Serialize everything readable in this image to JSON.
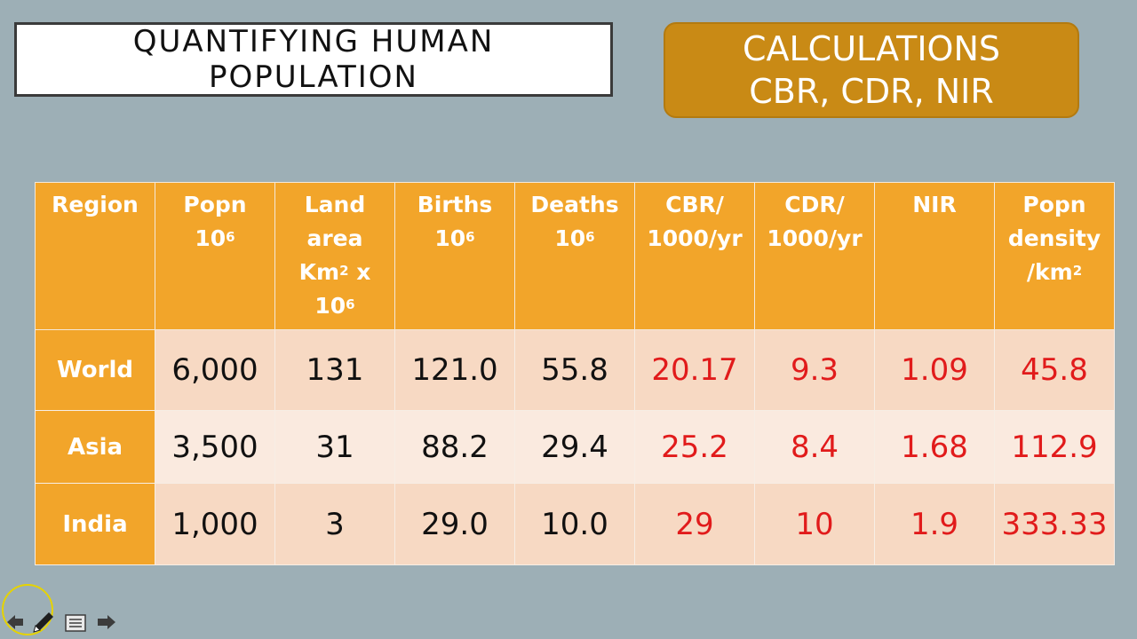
{
  "title": {
    "line1": "QUANTIFYING HUMAN",
    "line2": "POPULATION"
  },
  "calc_box": {
    "line1": "CALCULATIONS",
    "line2": "CBR, CDR, NIR"
  },
  "table": {
    "headers": {
      "region": "Region",
      "popn_line1": "Popn",
      "popn_line2": "10",
      "popn_exp": "6",
      "land_line1": "Land",
      "land_line2": "area",
      "land_line3": "Km",
      "land_exp1": "2",
      "land_line3b": " x",
      "land_line4": "10",
      "land_exp2": "6",
      "births_line1": "Births",
      "births_line2": "10",
      "births_exp": "6",
      "deaths_line1": "Deaths",
      "deaths_line2": "10",
      "deaths_exp": "6",
      "cbr_line1": "CBR/",
      "cbr_line2": "1000/yr",
      "cdr_line1": "CDR/",
      "cdr_line2": "1000/yr",
      "nir": "NIR",
      "density_line1": "Popn",
      "density_line2": "density",
      "density_line3": "/km",
      "density_exp": "2"
    },
    "rows": [
      {
        "region": "World",
        "popn": "6,000",
        "land": "131",
        "births": "121.0",
        "deaths": "55.8",
        "cbr": "20.17",
        "cdr": "9.3",
        "nir": "1.09",
        "density": "45.8"
      },
      {
        "region": "Asia",
        "popn": "3,500",
        "land": "31",
        "births": "88.2",
        "deaths": "29.4",
        "cbr": "25.2",
        "cdr": "8.4",
        "nir": "1.68",
        "density": "112.9"
      },
      {
        "region": "India",
        "popn": "1,000",
        "land": "3",
        "births": "29.0",
        "deaths": "10.0",
        "cbr": "29",
        "cdr": "10",
        "nir": "1.9",
        "density": "333.33"
      }
    ]
  },
  "colors": {
    "background": "#9dafb6",
    "header_orange": "#f2a52a",
    "calc_box": "#c98a15",
    "calc_text_red": "#e11b1b"
  },
  "icons": {
    "nav_back": "arrow-left-icon",
    "pen": "pen-icon",
    "menu": "slide-menu-icon",
    "nav_forward": "arrow-right-icon"
  }
}
